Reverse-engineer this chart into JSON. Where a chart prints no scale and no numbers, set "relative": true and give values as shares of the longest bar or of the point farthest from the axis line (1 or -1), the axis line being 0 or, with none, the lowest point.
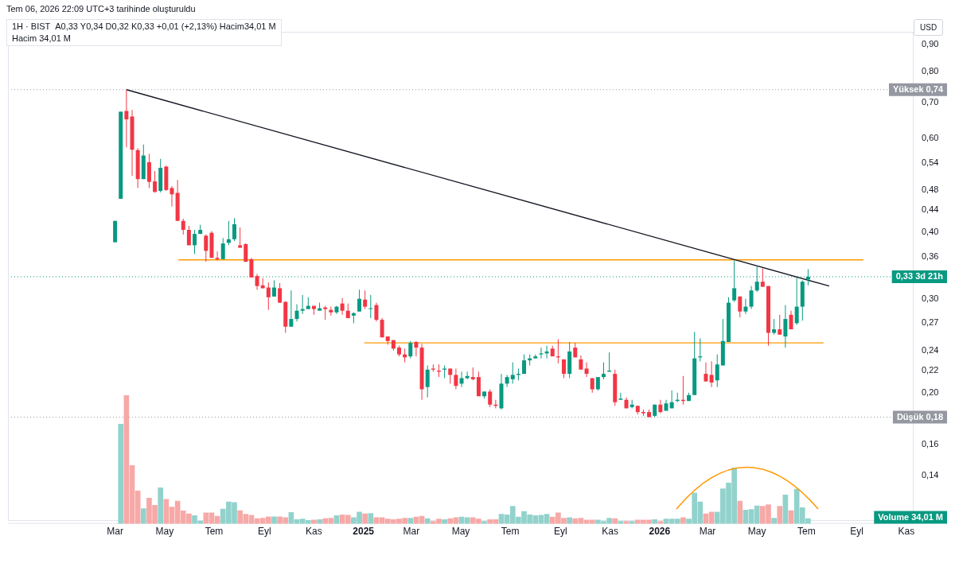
{
  "chart_data": [
    {
      "type": "candlestick",
      "title": "1H · BIST",
      "subtitle": "A0,33 Y0,34 D0,32 K0,33 +0,01 (+2,13%) Hacim34,01 M",
      "annotations": [
        "Tem 06, 2026 22:09 UTC+3 tarihinde oluşturuldu",
        "Hacim 34,01 M",
        "USD"
      ],
      "log": "y",
      "tick_labels": "y",
      "xlim": [
        "2023-10-21",
        "2026-11-10"
      ],
      "ylim": [
        0.115,
        0.95
      ],
      "yticks": [
        {
          "value": 0.9,
          "label": "0,90"
        },
        {
          "value": 0.8,
          "label": "0,80"
        },
        {
          "value": 0.7,
          "label": "0,70"
        },
        {
          "value": 0.6,
          "label": "0,60"
        },
        {
          "value": 0.54,
          "label": "0,54"
        },
        {
          "value": 0.48,
          "label": "0,48"
        },
        {
          "value": 0.44,
          "label": "0,44"
        },
        {
          "value": 0.4,
          "label": "0,40"
        },
        {
          "value": 0.36,
          "label": "0,36"
        },
        {
          "value": 0.3,
          "label": "0,30"
        },
        {
          "value": 0.27,
          "label": "0,27"
        },
        {
          "value": 0.24,
          "label": "0,24"
        },
        {
          "value": 0.22,
          "label": "0,22"
        },
        {
          "value": 0.2,
          "label": "0,20"
        },
        {
          "value": 0.16,
          "label": "0,16"
        },
        {
          "value": 0.14,
          "label": "0,14"
        }
      ],
      "x": [
        "2024-03-01",
        "2024-03-08",
        "2024-03-15",
        "2024-03-22",
        "2024-03-29",
        "2024-04-05",
        "2024-04-12",
        "2024-04-19",
        "2024-04-26",
        "2024-05-03",
        "2024-05-10",
        "2024-05-17",
        "2024-05-24",
        "2024-05-31",
        "2024-06-07",
        "2024-06-14",
        "2024-06-21",
        "2024-06-28",
        "2024-07-05",
        "2024-07-12",
        "2024-07-19",
        "2024-07-26",
        "2024-08-02",
        "2024-08-09",
        "2024-08-16",
        "2024-08-23",
        "2024-08-30",
        "2024-09-06",
        "2024-09-13",
        "2024-09-20",
        "2024-09-27",
        "2024-10-04",
        "2024-10-11",
        "2024-10-18",
        "2024-10-25",
        "2024-11-01",
        "2024-11-08",
        "2024-11-15",
        "2024-11-22",
        "2024-11-29",
        "2024-12-06",
        "2024-12-13",
        "2024-12-20",
        "2024-12-27",
        "2025-01-03",
        "2025-01-10",
        "2025-01-17",
        "2025-01-24",
        "2025-01-31",
        "2025-02-07",
        "2025-02-14",
        "2025-02-21",
        "2025-02-28",
        "2025-03-07",
        "2025-03-14",
        "2025-03-21",
        "2025-03-28",
        "2025-04-04",
        "2025-04-11",
        "2025-04-18",
        "2025-04-25",
        "2025-05-02",
        "2025-05-09",
        "2025-05-16",
        "2025-05-23",
        "2025-05-30",
        "2025-06-06",
        "2025-06-13",
        "2025-06-20",
        "2025-06-27",
        "2025-07-04",
        "2025-07-11",
        "2025-07-18",
        "2025-07-25",
        "2025-08-01",
        "2025-08-08",
        "2025-08-15",
        "2025-08-22",
        "2025-08-29",
        "2025-09-05",
        "2025-09-12",
        "2025-09-19",
        "2025-09-26",
        "2025-10-03",
        "2025-10-10",
        "2025-10-17",
        "2025-10-24",
        "2025-10-31",
        "2025-11-07",
        "2025-11-14",
        "2025-11-21",
        "2025-11-28",
        "2025-12-05",
        "2025-12-12",
        "2025-12-19",
        "2025-12-26",
        "2026-01-02",
        "2026-01-09",
        "2026-01-16",
        "2026-01-23",
        "2026-01-30",
        "2026-02-06",
        "2026-02-13",
        "2026-02-20",
        "2026-02-27",
        "2026-03-06",
        "2026-03-13",
        "2026-03-20",
        "2026-03-27",
        "2026-04-03",
        "2026-04-10",
        "2026-04-17",
        "2026-04-24",
        "2026-05-01",
        "2026-05-08",
        "2026-05-15",
        "2026-05-22",
        "2026-05-29",
        "2026-06-05",
        "2026-06-12",
        "2026-06-19",
        "2026-06-26",
        "2026-07-03"
      ],
      "ohlc": [
        [
          0.383,
          0.42,
          0.383,
          0.42
        ],
        [
          0.462,
          0.673,
          0.462,
          0.673
        ],
        [
          0.675,
          0.74,
          0.577,
          0.651
        ],
        [
          0.659,
          0.678,
          0.51,
          0.571
        ],
        [
          0.57,
          0.575,
          0.484,
          0.503
        ],
        [
          0.503,
          0.584,
          0.503,
          0.557
        ],
        [
          0.541,
          0.561,
          0.484,
          0.497
        ],
        [
          0.498,
          0.521,
          0.474,
          0.476
        ],
        [
          0.478,
          0.549,
          0.475,
          0.528
        ],
        [
          0.531,
          0.533,
          0.478,
          0.48
        ],
        [
          0.484,
          0.488,
          0.447,
          0.471
        ],
        [
          0.474,
          0.501,
          0.42,
          0.42
        ],
        [
          0.42,
          0.424,
          0.396,
          0.404
        ],
        [
          0.404,
          0.411,
          0.378,
          0.378
        ],
        [
          0.378,
          0.404,
          0.364,
          0.397
        ],
        [
          0.397,
          0.413,
          0.397,
          0.404
        ],
        [
          0.394,
          0.396,
          0.352,
          0.369
        ],
        [
          0.399,
          0.402,
          0.358,
          0.358
        ],
        [
          0.358,
          0.368,
          0.354,
          0.356
        ],
        [
          0.356,
          0.39,
          0.356,
          0.381
        ],
        [
          0.382,
          0.42,
          0.378,
          0.388
        ],
        [
          0.388,
          0.425,
          0.385,
          0.414
        ],
        [
          0.378,
          0.408,
          0.374,
          0.374
        ],
        [
          0.38,
          0.381,
          0.352,
          0.352
        ],
        [
          0.356,
          0.358,
          0.329,
          0.329
        ],
        [
          0.331,
          0.334,
          0.312,
          0.317
        ],
        [
          0.318,
          0.328,
          0.314,
          0.314
        ],
        [
          0.315,
          0.322,
          0.286,
          0.302
        ],
        [
          0.303,
          0.325,
          0.303,
          0.315
        ],
        [
          0.314,
          0.321,
          0.295,
          0.295
        ],
        [
          0.296,
          0.297,
          0.259,
          0.266
        ],
        [
          0.266,
          0.311,
          0.266,
          0.275
        ],
        [
          0.275,
          0.293,
          0.272,
          0.285
        ],
        [
          0.285,
          0.305,
          0.281,
          0.287
        ],
        [
          0.287,
          0.302,
          0.287,
          0.291
        ],
        [
          0.291,
          0.291,
          0.28,
          0.287
        ],
        [
          0.285,
          0.295,
          0.285,
          0.288
        ],
        [
          0.289,
          0.291,
          0.274,
          0.287
        ],
        [
          0.286,
          0.29,
          0.279,
          0.283
        ],
        [
          0.283,
          0.291,
          0.281,
          0.29
        ],
        [
          0.294,
          0.301,
          0.28,
          0.285
        ],
        [
          0.285,
          0.294,
          0.276,
          0.276
        ],
        [
          0.279,
          0.283,
          0.27,
          0.282
        ],
        [
          0.284,
          0.312,
          0.284,
          0.3
        ],
        [
          0.299,
          0.311,
          0.287,
          0.29
        ],
        [
          0.287,
          0.305,
          0.276,
          0.288
        ],
        [
          0.292,
          0.295,
          0.272,
          0.274
        ],
        [
          0.274,
          0.276,
          0.254,
          0.254
        ],
        [
          0.255,
          0.255,
          0.246,
          0.25
        ],
        [
          0.251,
          0.251,
          0.24,
          0.242
        ],
        [
          0.243,
          0.245,
          0.234,
          0.236
        ],
        [
          0.236,
          0.242,
          0.228,
          0.233
        ],
        [
          0.234,
          0.25,
          0.232,
          0.248
        ],
        [
          0.249,
          0.25,
          0.234,
          0.243
        ],
        [
          0.243,
          0.247,
          0.194,
          0.203
        ],
        [
          0.205,
          0.225,
          0.196,
          0.221
        ],
        [
          0.222,
          0.226,
          0.219,
          0.221
        ],
        [
          0.22,
          0.226,
          0.214,
          0.219
        ],
        [
          0.221,
          0.225,
          0.213,
          0.222
        ],
        [
          0.222,
          0.222,
          0.208,
          0.216
        ],
        [
          0.216,
          0.222,
          0.203,
          0.206
        ],
        [
          0.208,
          0.219,
          0.205,
          0.213
        ],
        [
          0.213,
          0.219,
          0.212,
          0.215
        ],
        [
          0.214,
          0.223,
          0.211,
          0.212
        ],
        [
          0.214,
          0.219,
          0.197,
          0.197
        ],
        [
          0.197,
          0.201,
          0.195,
          0.201
        ],
        [
          0.201,
          0.203,
          0.188,
          0.19
        ],
        [
          0.19,
          0.194,
          0.187,
          0.189
        ],
        [
          0.187,
          0.217,
          0.186,
          0.208
        ],
        [
          0.208,
          0.216,
          0.205,
          0.214
        ],
        [
          0.212,
          0.228,
          0.208,
          0.216
        ],
        [
          0.216,
          0.222,
          0.211,
          0.217
        ],
        [
          0.217,
          0.236,
          0.217,
          0.23
        ],
        [
          0.23,
          0.236,
          0.225,
          0.232
        ],
        [
          0.232,
          0.236,
          0.232,
          0.234
        ],
        [
          0.236,
          0.243,
          0.232,
          0.237
        ],
        [
          0.237,
          0.245,
          0.232,
          0.239
        ],
        [
          0.242,
          0.245,
          0.234,
          0.234
        ],
        [
          0.234,
          0.252,
          0.227,
          0.233
        ],
        [
          0.231,
          0.231,
          0.213,
          0.217
        ],
        [
          0.217,
          0.249,
          0.213,
          0.239
        ],
        [
          0.243,
          0.248,
          0.233,
          0.233
        ],
        [
          0.231,
          0.235,
          0.221,
          0.221
        ],
        [
          0.222,
          0.228,
          0.214,
          0.217
        ],
        [
          0.213,
          0.213,
          0.2,
          0.203
        ],
        [
          0.203,
          0.214,
          0.202,
          0.214
        ],
        [
          0.214,
          0.228,
          0.212,
          0.217
        ],
        [
          0.219,
          0.238,
          0.219,
          0.22
        ],
        [
          0.217,
          0.221,
          0.189,
          0.192
        ],
        [
          0.194,
          0.2,
          0.194,
          0.195
        ],
        [
          0.194,
          0.196,
          0.187,
          0.187
        ],
        [
          0.188,
          0.194,
          0.187,
          0.19
        ],
        [
          0.189,
          0.189,
          0.182,
          0.184
        ],
        [
          0.184,
          0.186,
          0.181,
          0.183
        ],
        [
          0.184,
          0.186,
          0.18,
          0.18
        ],
        [
          0.181,
          0.19,
          0.18,
          0.19
        ],
        [
          0.19,
          0.194,
          0.183,
          0.184
        ],
        [
          0.185,
          0.194,
          0.185,
          0.191
        ],
        [
          0.187,
          0.202,
          0.187,
          0.192
        ],
        [
          0.193,
          0.2,
          0.192,
          0.194
        ],
        [
          0.194,
          0.215,
          0.19,
          0.193
        ],
        [
          0.193,
          0.2,
          0.193,
          0.198
        ],
        [
          0.198,
          0.26,
          0.198,
          0.232
        ],
        [
          0.233,
          0.253,
          0.229,
          0.234
        ],
        [
          0.217,
          0.228,
          0.21,
          0.21
        ],
        [
          0.216,
          0.229,
          0.205,
          0.209
        ],
        [
          0.211,
          0.236,
          0.205,
          0.226
        ],
        [
          0.225,
          0.275,
          0.225,
          0.25
        ],
        [
          0.249,
          0.302,
          0.249,
          0.295
        ],
        [
          0.298,
          0.354,
          0.296,
          0.314
        ],
        [
          0.303,
          0.303,
          0.277,
          0.284
        ],
        [
          0.284,
          0.3,
          0.281,
          0.29
        ],
        [
          0.29,
          0.317,
          0.287,
          0.311
        ],
        [
          0.311,
          0.346,
          0.309,
          0.323
        ],
        [
          0.323,
          0.342,
          0.316,
          0.316
        ],
        [
          0.317,
          0.317,
          0.245,
          0.259
        ],
        [
          0.259,
          0.275,
          0.257,
          0.263
        ],
        [
          0.263,
          0.28,
          0.257,
          0.257
        ],
        [
          0.255,
          0.292,
          0.243,
          0.275
        ],
        [
          0.28,
          0.285,
          0.263,
          0.263
        ],
        [
          0.27,
          0.329,
          0.268,
          0.29
        ],
        [
          0.29,
          0.325,
          0.273,
          0.323
        ],
        [
          0.326,
          0.341,
          0.318,
          0.33
        ]
      ],
      "colors": [
        "#089981",
        "#089981",
        "#f23645",
        "#f23645",
        "#f23645",
        "#089981",
        "#f23645",
        "#f23645",
        "#089981",
        "#f23645",
        "#f23645",
        "#f23645",
        "#f23645",
        "#f23645",
        "#089981",
        "#089981",
        "#f23645",
        "#f23645",
        "#f23645",
        "#089981",
        "#089981",
        "#089981",
        "#f23645",
        "#f23645",
        "#f23645",
        "#f23645",
        "#f23645",
        "#f23645",
        "#089981",
        "#f23645",
        "#f23645",
        "#089981",
        "#089981",
        "#089981",
        "#089981",
        "#f23645",
        "#089981",
        "#f23645",
        "#f23645",
        "#089981",
        "#f23645",
        "#f23645",
        "#089981",
        "#089981",
        "#f23645",
        "#089981",
        "#f23645",
        "#f23645",
        "#f23645",
        "#f23645",
        "#f23645",
        "#f23645",
        "#089981",
        "#f23645",
        "#f23645",
        "#089981",
        "#f23645",
        "#f23645",
        "#089981",
        "#f23645",
        "#f23645",
        "#089981",
        "#089981",
        "#f23645",
        "#f23645",
        "#089981",
        "#f23645",
        "#f23645",
        "#089981",
        "#089981",
        "#089981",
        "#089981",
        "#089981",
        "#089981",
        "#089981",
        "#089981",
        "#089981",
        "#f23645",
        "#f23645",
        "#f23645",
        "#089981",
        "#f23645",
        "#f23645",
        "#f23645",
        "#f23645",
        "#089981",
        "#089981",
        "#089981",
        "#f23645",
        "#089981",
        "#f23645",
        "#089981",
        "#f23645",
        "#f23645",
        "#f23645",
        "#089981",
        "#f23645",
        "#089981",
        "#089981",
        "#089981",
        "#f23645",
        "#089981",
        "#089981",
        "#089981",
        "#f23645",
        "#f23645",
        "#089981",
        "#089981",
        "#089981",
        "#089981",
        "#f23645",
        "#089981",
        "#089981",
        "#089981",
        "#f23645",
        "#f23645",
        "#089981",
        "#f23645",
        "#089981",
        "#f23645",
        "#089981",
        "#089981",
        "#089981"
      ],
      "series": [
        {
          "type": "line",
          "color": "#131722",
          "x": [
            "2024-03-15",
            "2026-07-29"
          ],
          "values": [
            0.74,
            0.317
          ]
        },
        {
          "type": "line",
          "color": "#ff9800",
          "x": [
            "2024-05-18",
            "2026-09-09"
          ],
          "values": [
            0.355,
            0.355
          ]
        },
        {
          "type": "line",
          "color": "#ff9800",
          "x": [
            "2025-01-02",
            "2026-07-22"
          ],
          "values": [
            0.248,
            0.248
          ]
        }
      ],
      "ref_lines": [
        {
          "axis": "y",
          "value": 0.74,
          "label": "Yüksek 0,74",
          "color": "#9598a1",
          "line_style": "dotted"
        },
        {
          "axis": "y",
          "value": 0.18,
          "label": "Düşük 0,18",
          "color": "#9598a1",
          "line_style": "dotted"
        },
        {
          "axis": "y",
          "value": 0.33,
          "label": "0,33 3d 21h",
          "color": "#089981",
          "line_style": "dotted"
        }
      ]
    },
    {
      "type": "bar",
      "relative": true,
      "tick_labels": "x",
      "annotations": [
        "Volume 34,01 M"
      ],
      "xlim": [
        "2023-10-21",
        "2026-11-10"
      ],
      "xticks": [
        {
          "value": "2024-03-01",
          "label": "Mar"
        },
        {
          "value": "2024-05-01",
          "label": "May"
        },
        {
          "value": "2024-07-01",
          "label": "Tem"
        },
        {
          "value": "2024-09-01",
          "label": "Eyl"
        },
        {
          "value": "2024-11-01",
          "label": "Kas"
        },
        {
          "value": "2025-01-01",
          "label": "2025"
        },
        {
          "value": "2025-03-01",
          "label": "Mar"
        },
        {
          "value": "2025-05-01",
          "label": "May"
        },
        {
          "value": "2025-07-01",
          "label": "Tem"
        },
        {
          "value": "2025-09-01",
          "label": "Eyl"
        },
        {
          "value": "2025-11-01",
          "label": "Kas"
        },
        {
          "value": "2026-01-01",
          "label": "2026"
        },
        {
          "value": "2026-03-01",
          "label": "Mar"
        },
        {
          "value": "2026-05-01",
          "label": "May"
        },
        {
          "value": "2026-07-01",
          "label": "Tem"
        },
        {
          "value": "2026-09-01",
          "label": "Eyl"
        },
        {
          "value": "2026-11-01",
          "label": "Kas"
        }
      ],
      "x": [
        "2024-03-08",
        "2024-03-15",
        "2024-03-22",
        "2024-03-29",
        "2024-04-05",
        "2024-04-12",
        "2024-04-19",
        "2024-04-26",
        "2024-05-03",
        "2024-05-10",
        "2024-05-17",
        "2024-05-24",
        "2024-05-31",
        "2024-06-07",
        "2024-06-14",
        "2024-06-21",
        "2024-06-28",
        "2024-07-05",
        "2024-07-12",
        "2024-07-19",
        "2024-07-26",
        "2024-08-02",
        "2024-08-09",
        "2024-08-16",
        "2024-08-23",
        "2024-08-30",
        "2024-09-06",
        "2024-09-13",
        "2024-09-20",
        "2024-09-27",
        "2024-10-04",
        "2024-10-11",
        "2024-10-18",
        "2024-10-25",
        "2024-11-01",
        "2024-11-08",
        "2024-11-15",
        "2024-11-22",
        "2024-11-29",
        "2024-12-06",
        "2024-12-13",
        "2024-12-20",
        "2024-12-27",
        "2025-01-03",
        "2025-01-10",
        "2025-01-17",
        "2025-01-24",
        "2025-01-31",
        "2025-02-07",
        "2025-02-14",
        "2025-02-21",
        "2025-02-28",
        "2025-03-07",
        "2025-03-14",
        "2025-03-21",
        "2025-03-28",
        "2025-04-04",
        "2025-04-11",
        "2025-04-18",
        "2025-04-25",
        "2025-05-02",
        "2025-05-09",
        "2025-05-16",
        "2025-05-23",
        "2025-05-30",
        "2025-06-06",
        "2025-06-13",
        "2025-06-20",
        "2025-06-27",
        "2025-07-04",
        "2025-07-11",
        "2025-07-18",
        "2025-07-25",
        "2025-08-01",
        "2025-08-08",
        "2025-08-15",
        "2025-08-22",
        "2025-08-29",
        "2025-09-05",
        "2025-09-12",
        "2025-09-19",
        "2025-09-26",
        "2025-10-03",
        "2025-10-10",
        "2025-10-17",
        "2025-10-24",
        "2025-10-31",
        "2025-11-07",
        "2025-11-14",
        "2025-11-21",
        "2025-11-28",
        "2025-12-05",
        "2025-12-12",
        "2025-12-19",
        "2025-12-26",
        "2026-01-02",
        "2026-01-09",
        "2026-01-16",
        "2026-01-23",
        "2026-01-30",
        "2026-02-06",
        "2026-02-13",
        "2026-02-20",
        "2026-02-27",
        "2026-03-06",
        "2026-03-13",
        "2026-03-20",
        "2026-03-27",
        "2026-04-03",
        "2026-04-10",
        "2026-04-17",
        "2026-04-24",
        "2026-05-01",
        "2026-05-08",
        "2026-05-15",
        "2026-05-22",
        "2026-05-29",
        "2026-06-05",
        "2026-06-12",
        "2026-06-19",
        "2026-06-26",
        "2026-07-03"
      ],
      "values": [
        0.775,
        1,
        0.454,
        0.255,
        0.118,
        0.2,
        0.144,
        0.28,
        0.19,
        0.13,
        0.177,
        0.1,
        0.077,
        0.063,
        0.022,
        0.085,
        0.085,
        0.059,
        0.114,
        0.17,
        0.166,
        0.103,
        0.074,
        0.066,
        0.041,
        0.044,
        0.055,
        0.055,
        0.055,
        0.048,
        0.089,
        0.033,
        0.037,
        0.026,
        0.03,
        0.033,
        0.041,
        0.044,
        0.063,
        0.07,
        0.066,
        0.048,
        0.092,
        0.077,
        0.081,
        0.048,
        0.048,
        0.037,
        0.033,
        0.037,
        0.044,
        0.044,
        0.052,
        0.059,
        0.041,
        0.018,
        0.037,
        0.033,
        0.041,
        0.048,
        0.052,
        0.048,
        0.048,
        0.037,
        0.018,
        0.033,
        0.033,
        0.074,
        0.07,
        0.137,
        0.052,
        0.096,
        0.07,
        0.063,
        0.066,
        0.074,
        0.052,
        0.085,
        0.044,
        0.048,
        0.041,
        0.044,
        0.03,
        0.03,
        0.03,
        0.018,
        0.044,
        0.041,
        0.018,
        0.018,
        0.018,
        0.03,
        0.03,
        0.03,
        0.033,
        0.018,
        0.037,
        0.037,
        0.037,
        0.048,
        0.037,
        0.24,
        0.17,
        0.077,
        0.092,
        0.092,
        0.273,
        0.317,
        0.435,
        0.177,
        0.107,
        0.111,
        0.14,
        0.137,
        0.148,
        0.044,
        0.137,
        0.225,
        0.103,
        0.269,
        0.125,
        0.041
      ],
      "colors": [
        "#92d2cc",
        "#f7a9a7",
        "#f7a9a7",
        "#f7a9a7",
        "#92d2cc",
        "#f7a9a7",
        "#f7a9a7",
        "#92d2cc",
        "#f7a9a7",
        "#f7a9a7",
        "#f7a9a7",
        "#f7a9a7",
        "#f7a9a7",
        "#92d2cc",
        "#92d2cc",
        "#f7a9a7",
        "#f7a9a7",
        "#f7a9a7",
        "#92d2cc",
        "#92d2cc",
        "#92d2cc",
        "#f7a9a7",
        "#f7a9a7",
        "#f7a9a7",
        "#f7a9a7",
        "#f7a9a7",
        "#f7a9a7",
        "#92d2cc",
        "#f7a9a7",
        "#f7a9a7",
        "#92d2cc",
        "#92d2cc",
        "#92d2cc",
        "#92d2cc",
        "#f7a9a7",
        "#92d2cc",
        "#f7a9a7",
        "#f7a9a7",
        "#92d2cc",
        "#f7a9a7",
        "#f7a9a7",
        "#92d2cc",
        "#92d2cc",
        "#f7a9a7",
        "#92d2cc",
        "#f7a9a7",
        "#f7a9a7",
        "#f7a9a7",
        "#f7a9a7",
        "#f7a9a7",
        "#f7a9a7",
        "#92d2cc",
        "#f7a9a7",
        "#f7a9a7",
        "#92d2cc",
        "#f7a9a7",
        "#f7a9a7",
        "#92d2cc",
        "#f7a9a7",
        "#f7a9a7",
        "#92d2cc",
        "#92d2cc",
        "#f7a9a7",
        "#f7a9a7",
        "#92d2cc",
        "#f7a9a7",
        "#f7a9a7",
        "#92d2cc",
        "#92d2cc",
        "#92d2cc",
        "#92d2cc",
        "#92d2cc",
        "#92d2cc",
        "#92d2cc",
        "#92d2cc",
        "#92d2cc",
        "#f7a9a7",
        "#f7a9a7",
        "#f7a9a7",
        "#92d2cc",
        "#f7a9a7",
        "#f7a9a7",
        "#f7a9a7",
        "#f7a9a7",
        "#92d2cc",
        "#92d2cc",
        "#92d2cc",
        "#f7a9a7",
        "#92d2cc",
        "#f7a9a7",
        "#92d2cc",
        "#f7a9a7",
        "#f7a9a7",
        "#f7a9a7",
        "#92d2cc",
        "#f7a9a7",
        "#92d2cc",
        "#92d2cc",
        "#92d2cc",
        "#f7a9a7",
        "#92d2cc",
        "#92d2cc",
        "#92d2cc",
        "#f7a9a7",
        "#f7a9a7",
        "#92d2cc",
        "#92d2cc",
        "#92d2cc",
        "#92d2cc",
        "#f7a9a7",
        "#92d2cc",
        "#92d2cc",
        "#92d2cc",
        "#f7a9a7",
        "#f7a9a7",
        "#92d2cc",
        "#f7a9a7",
        "#92d2cc",
        "#f7a9a7",
        "#92d2cc",
        "#92d2cc",
        "#92d2cc"
      ]
    }
  ]
}
